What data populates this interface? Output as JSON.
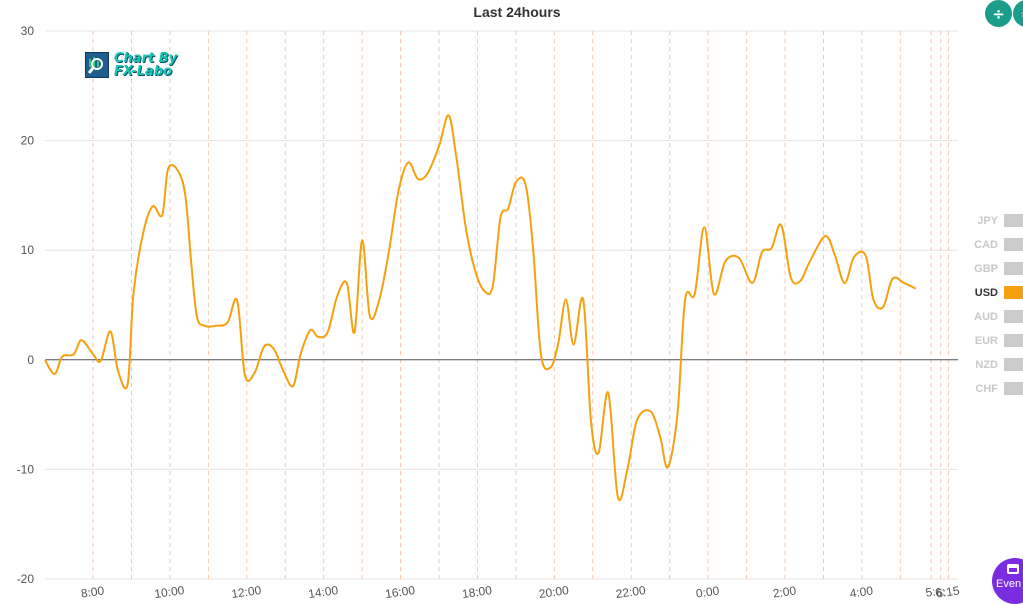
{
  "toolbar": {
    "events_label": "Even",
    "icons": [
      "split-vertical-icon",
      "toggle-icon",
      "calendar-icon"
    ]
  },
  "watermark": {
    "line1": "Chart By",
    "line2": "FX-Labo"
  },
  "chart_data": {
    "type": "line",
    "title": "Last 24hours",
    "xlabel": "",
    "ylabel": "",
    "ylim": [
      -20,
      30
    ],
    "yticks": [
      -20,
      -10,
      0,
      10,
      20,
      30
    ],
    "xlim": [
      6.55,
      30.3
    ],
    "xticks": [
      {
        "x": 7.8,
        "label": "8:00"
      },
      {
        "x": 9.8,
        "label": "10:00"
      },
      {
        "x": 11.8,
        "label": "12:00"
      },
      {
        "x": 13.8,
        "label": "14:00"
      },
      {
        "x": 15.8,
        "label": "16:00"
      },
      {
        "x": 17.8,
        "label": "18:00"
      },
      {
        "x": 19.8,
        "label": "20:00"
      },
      {
        "x": 21.8,
        "label": "22:00"
      },
      {
        "x": 23.8,
        "label": "0:00"
      },
      {
        "x": 25.8,
        "label": "2:00"
      },
      {
        "x": 27.8,
        "label": "4:00"
      },
      {
        "x": 29.6,
        "label": "5:"
      },
      {
        "x": 29.85,
        "label": "6:"
      },
      {
        "x": 30.05,
        "label": "6:15"
      }
    ],
    "vlines": [
      7.8,
      8.8,
      9.8,
      10.8,
      11.8,
      12.8,
      13.8,
      14.8,
      15.8,
      16.8,
      17.8,
      18.8,
      19.8,
      20.8,
      21.8,
      22.8,
      23.8,
      24.8,
      25.8,
      26.8,
      27.8,
      28.8,
      29.6,
      29.85,
      30.05
    ],
    "grid": true,
    "legend_position": "right",
    "legend": [
      {
        "name": "JPY",
        "active": false
      },
      {
        "name": "CAD",
        "active": false
      },
      {
        "name": "GBP",
        "active": false
      },
      {
        "name": "USD",
        "active": true
      },
      {
        "name": "AUD",
        "active": false
      },
      {
        "name": "EUR",
        "active": false
      },
      {
        "name": "NZD",
        "active": false
      },
      {
        "name": "CHF",
        "active": false
      }
    ],
    "colors": {
      "USD": "#f5a10f",
      "inactive": "#cccccc",
      "gridline": "#e6e6e6",
      "vline": "#f5c4a8"
    },
    "series": [
      {
        "name": "USD",
        "points": [
          [
            6.55,
            0
          ],
          [
            6.8,
            -1.3
          ],
          [
            7.0,
            0.3
          ],
          [
            7.3,
            0.5
          ],
          [
            7.5,
            1.8
          ],
          [
            7.8,
            0.5
          ],
          [
            8.0,
            -0.1
          ],
          [
            8.25,
            2.6
          ],
          [
            8.45,
            -1.0
          ],
          [
            8.7,
            -2.2
          ],
          [
            8.85,
            6.0
          ],
          [
            9.1,
            11.5
          ],
          [
            9.35,
            14.0
          ],
          [
            9.6,
            13.2
          ],
          [
            9.75,
            17.4
          ],
          [
            10.0,
            17.3
          ],
          [
            10.2,
            15.0
          ],
          [
            10.35,
            9.0
          ],
          [
            10.5,
            4.0
          ],
          [
            10.7,
            3.1
          ],
          [
            11.0,
            3.1
          ],
          [
            11.3,
            3.4
          ],
          [
            11.55,
            5.4
          ],
          [
            11.75,
            -1.4
          ],
          [
            12.0,
            -1.2
          ],
          [
            12.25,
            1.2
          ],
          [
            12.5,
            1.0
          ],
          [
            12.75,
            -1.0
          ],
          [
            13.0,
            -2.4
          ],
          [
            13.2,
            0.5
          ],
          [
            13.45,
            2.7
          ],
          [
            13.65,
            2.1
          ],
          [
            13.9,
            2.5
          ],
          [
            14.15,
            5.8
          ],
          [
            14.4,
            7.0
          ],
          [
            14.6,
            2.5
          ],
          [
            14.8,
            10.9
          ],
          [
            15.0,
            4.0
          ],
          [
            15.25,
            5.5
          ],
          [
            15.5,
            10.0
          ],
          [
            15.75,
            15.5
          ],
          [
            16.0,
            18.0
          ],
          [
            16.25,
            16.5
          ],
          [
            16.5,
            17.0
          ],
          [
            16.8,
            19.5
          ],
          [
            17.05,
            22.3
          ],
          [
            17.25,
            18.5
          ],
          [
            17.5,
            12.0
          ],
          [
            17.75,
            8.0
          ],
          [
            18.0,
            6.2
          ],
          [
            18.2,
            6.8
          ],
          [
            18.4,
            13.0
          ],
          [
            18.6,
            13.8
          ],
          [
            18.8,
            16.2
          ],
          [
            19.05,
            16.0
          ],
          [
            19.25,
            10.0
          ],
          [
            19.45,
            0.5
          ],
          [
            19.7,
            -0.7
          ],
          [
            19.9,
            1.5
          ],
          [
            20.1,
            5.5
          ],
          [
            20.3,
            1.4
          ],
          [
            20.55,
            5.5
          ],
          [
            20.75,
            -5.5
          ],
          [
            20.95,
            -8.5
          ],
          [
            21.2,
            -3.0
          ],
          [
            21.45,
            -12.5
          ],
          [
            21.7,
            -10.0
          ],
          [
            21.95,
            -5.5
          ],
          [
            22.3,
            -4.7
          ],
          [
            22.55,
            -7.0
          ],
          [
            22.75,
            -9.8
          ],
          [
            23.0,
            -5.0
          ],
          [
            23.2,
            5.5
          ],
          [
            23.45,
            6.0
          ],
          [
            23.7,
            12.1
          ],
          [
            23.95,
            6.0
          ],
          [
            24.25,
            9.0
          ],
          [
            24.6,
            9.3
          ],
          [
            24.95,
            7.0
          ],
          [
            25.2,
            9.8
          ],
          [
            25.45,
            10.2
          ],
          [
            25.7,
            12.3
          ],
          [
            25.95,
            7.5
          ],
          [
            26.2,
            7.2
          ],
          [
            26.45,
            9.0
          ],
          [
            26.85,
            11.3
          ],
          [
            27.1,
            9.5
          ],
          [
            27.35,
            7.0
          ],
          [
            27.6,
            9.4
          ],
          [
            27.9,
            9.5
          ],
          [
            28.1,
            5.5
          ],
          [
            28.35,
            4.8
          ],
          [
            28.6,
            7.4
          ],
          [
            28.9,
            7.0
          ],
          [
            29.2,
            6.5
          ]
        ]
      }
    ]
  }
}
